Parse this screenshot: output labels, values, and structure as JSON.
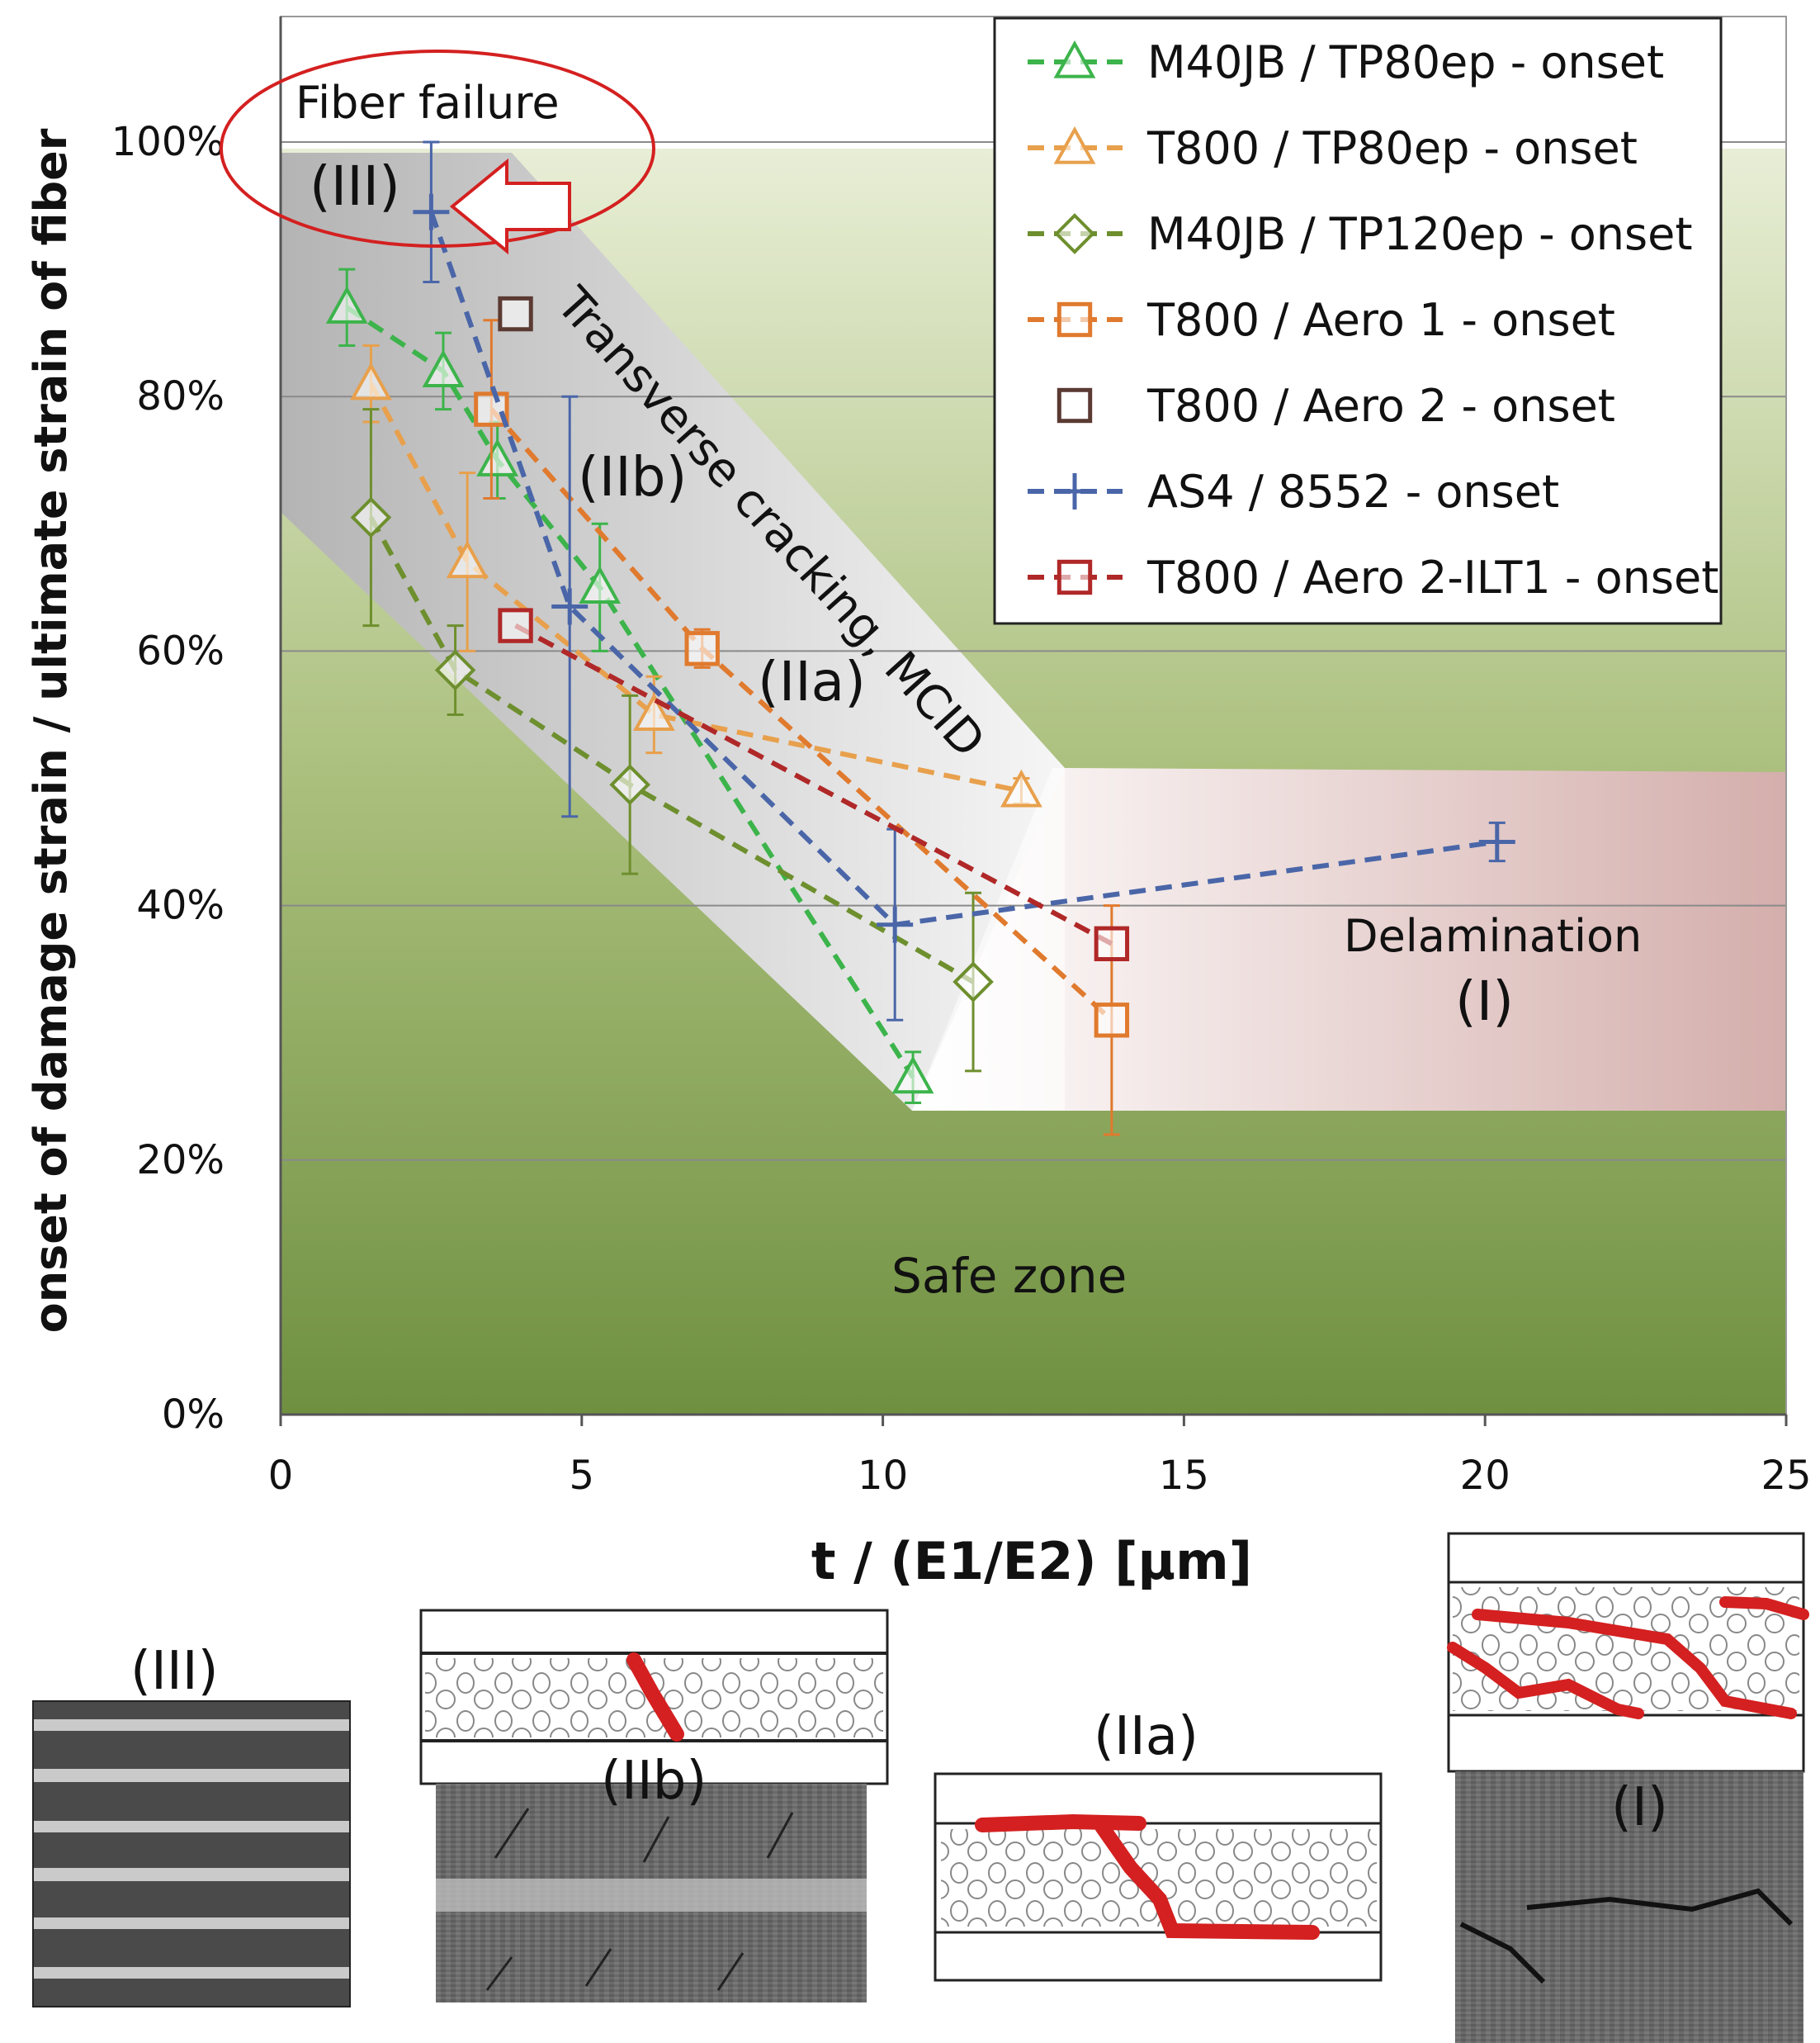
{
  "chart_data": {
    "type": "line",
    "xlabel": "t / (E1/E2) [μm]",
    "ylabel": "onset of damage strain / ultimate strain of fiber",
    "xlim": [
      0,
      25
    ],
    "ylim": [
      0,
      100
    ],
    "x_ticks": [
      0,
      5,
      10,
      15,
      20,
      25
    ],
    "x_tick_labels": [
      "0",
      "5",
      "10",
      "15",
      "20",
      "25"
    ],
    "y_ticks": [
      0,
      20,
      40,
      60,
      80,
      100
    ],
    "y_tick_labels": [
      "0%",
      "20%",
      "40%",
      "60%",
      "80%",
      "100%"
    ],
    "grid": "horizontal",
    "legend_position": "top-right",
    "series": [
      {
        "name": "M40JB / TP80ep - onset",
        "color": "#3cb44b",
        "marker": "triangle",
        "line": "dashed",
        "points": [
          [
            1.1,
            87,
            3
          ],
          [
            2.7,
            82,
            3
          ],
          [
            3.6,
            75,
            3
          ],
          [
            5.3,
            65,
            5
          ],
          [
            10.5,
            26.5,
            2
          ]
        ]
      },
      {
        "name": "T800 / TP80ep - onset",
        "color": "#e8a04c",
        "marker": "triangle",
        "line": "dashed",
        "points": [
          [
            1.5,
            81,
            3
          ],
          [
            3.1,
            67,
            7
          ],
          [
            6.2,
            55,
            3
          ],
          [
            12.3,
            49,
            1
          ]
        ]
      },
      {
        "name": "M40JB / TP120ep - onset",
        "color": "#6e8f2e",
        "marker": "diamond",
        "line": "dashed",
        "points": [
          [
            1.5,
            70.5,
            8.5
          ],
          [
            2.9,
            58.5,
            3.5
          ],
          [
            5.8,
            49.5,
            7
          ],
          [
            11.5,
            34,
            7
          ]
        ]
      },
      {
        "name": "T800 / Aero 1 - onset",
        "color": "#e07a2e",
        "marker": "square",
        "line": "dashed",
        "points": [
          [
            3.5,
            79,
            7
          ],
          [
            7.0,
            60.2,
            1.5
          ],
          [
            13.8,
            31,
            9
          ]
        ]
      },
      {
        "name": "T800 / Aero 2 - onset",
        "color": "#5a3a32",
        "marker": "square",
        "line": "none",
        "points": [
          [
            3.9,
            86.5,
            0
          ]
        ]
      },
      {
        "name": "AS4 / 8552 - onset",
        "color": "#4a66a8",
        "marker": "plus",
        "line": "dashed",
        "points": [
          [
            2.5,
            94.5,
            5.5
          ],
          [
            4.8,
            63.5,
            16.5
          ],
          [
            10.2,
            38.5,
            7.5
          ],
          [
            20.2,
            45,
            1.5
          ]
        ]
      },
      {
        "name": "T800 / Aero 2-ILT1 - onset",
        "color": "#b02828",
        "marker": "square",
        "line": "dashed",
        "points": [
          [
            3.9,
            62,
            0
          ],
          [
            13.8,
            37,
            0
          ]
        ]
      }
    ],
    "annotations": {
      "fiber_failure": "Fiber failure",
      "region_iii": "(III)",
      "region_iib": "(IIb)",
      "region_iia": "(IIa)",
      "transverse": "Transverse cracking, MCID",
      "delamination": "Delamination",
      "region_i": "(I)",
      "safe_zone": "Safe zone"
    }
  },
  "micrographs": {
    "label_iii": "(III)",
    "label_iib": "(IIb)",
    "label_iia": "(IIa)",
    "label_i": "(I)"
  },
  "colors": {
    "safe_zone": "#7f9f4a",
    "transverse_zone": "#d8d8d8",
    "delamination_zone": "#d9b5b2",
    "annotation_ellipse": "#d42020",
    "crack": "#d42020"
  }
}
